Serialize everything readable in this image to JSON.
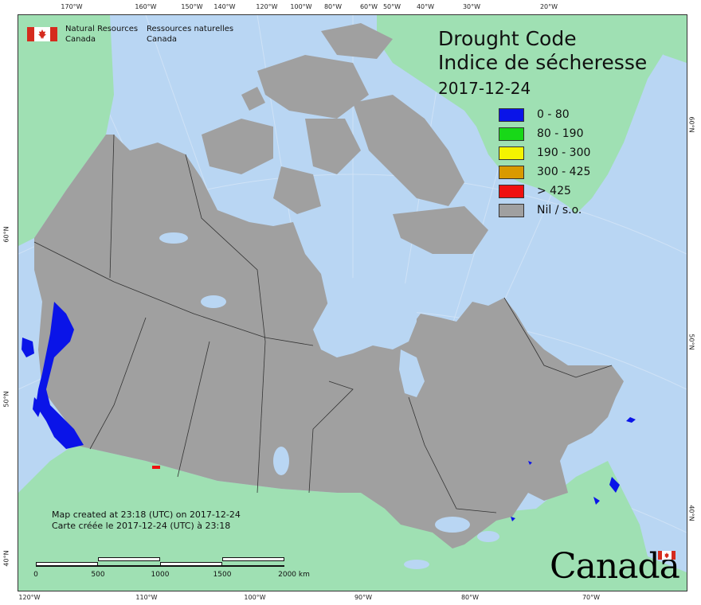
{
  "agency": {
    "en_line1": "Natural Resources",
    "en_line2": "Canada",
    "fr_line1": "Ressources naturelles",
    "fr_line2": "Canada"
  },
  "title": {
    "en": "Drought Code",
    "fr": "Indice de sécheresse",
    "date": "2017-12-24"
  },
  "legend": [
    {
      "label": "0 - 80",
      "color": "#0a14e8"
    },
    {
      "label": "80 - 190",
      "color": "#18d818"
    },
    {
      "label": "190 - 300",
      "color": "#f4f400"
    },
    {
      "label": "300 - 425",
      "color": "#d99a00"
    },
    {
      "label": "> 425",
      "color": "#f01010"
    },
    {
      "label": "Nil / s.o.",
      "color": "#a0a0a0"
    }
  ],
  "note": {
    "en": "Map created at 23:18 (UTC) on 2017-12-24",
    "fr": "Carte créée le 2017-12-24 (UTC) à 23:18"
  },
  "scale": {
    "labels": [
      "0",
      "500",
      "1000",
      "1500",
      "2000  km"
    ]
  },
  "ticks": {
    "top": [
      "170°W",
      "160°W",
      "150°W",
      "140°W",
      "120°W",
      "100°W",
      "80°W",
      "60°W",
      "50°W",
      "40°W",
      "30°W",
      "20°W"
    ],
    "bottom": [
      "120°W",
      "110°W",
      "100°W",
      "90°W",
      "80°W",
      "70°W"
    ],
    "left": [
      "60°N",
      "50°N",
      "40°N"
    ],
    "right": [
      "60°N",
      "50°N",
      "40°N"
    ]
  },
  "wordmark": "Canada",
  "colors": {
    "ocean": "#b9d6f3",
    "land": "#9fe0b3",
    "canada": "#a0a0a0",
    "water_inland": "#b9d6f3",
    "low_dc": "#0a14e8",
    "high_dc": "#f01010"
  }
}
